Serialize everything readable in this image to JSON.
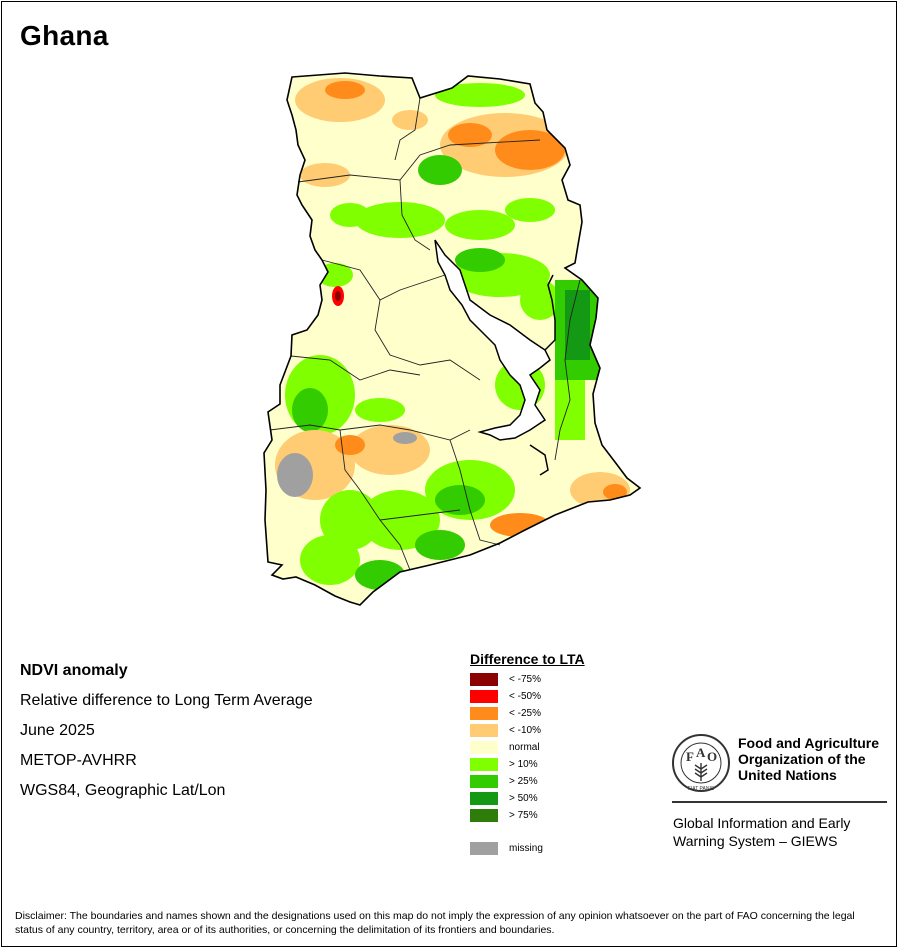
{
  "page": {
    "country": "Ghana"
  },
  "info": {
    "lines": [
      "NDVI anomaly",
      "Relative difference to Long Term Average",
      "June 2025",
      "METOP-AVHRR",
      "WGS84, Geographic Lat/Lon"
    ]
  },
  "legend": {
    "title": "Difference to LTA",
    "items": [
      {
        "label": "< -75%",
        "color": "#8b0000"
      },
      {
        "label": "< -50%",
        "color": "#ff0000"
      },
      {
        "label": "< -25%",
        "color": "#ff8c1a"
      },
      {
        "label": "< -10%",
        "color": "#ffcc73"
      },
      {
        "label": "normal",
        "color": "#ffffcc"
      },
      {
        "label": "> 10%",
        "color": "#80ff00"
      },
      {
        "label": "> 25%",
        "color": "#33cc00"
      },
      {
        "label": "> 50%",
        "color": "#149914"
      },
      {
        "label": "> 75%",
        "color": "#2e7d0a"
      }
    ],
    "missing": {
      "label": "missing",
      "color": "#a0a0a0"
    }
  },
  "logo": {
    "letters": [
      "F",
      "A",
      "O"
    ],
    "motto": "FIAT PANIS",
    "org_name": [
      "Food and Agriculture",
      "Organization of the",
      "United Nations"
    ],
    "system_name": [
      "Global Information and Early",
      "Warning System – GIEWS"
    ]
  },
  "disclaimer": "Disclaimer: The boundaries and names shown and the designations used on this map do not imply the expression of any opinion whatsoever on the part of FAO concerning the legal status of any country, territory, area or of its authorities, or concerning the delimitation of its frontiers and boundaries."
}
